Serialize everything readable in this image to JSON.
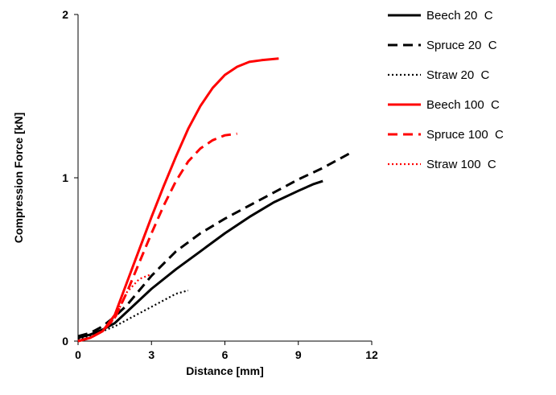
{
  "chart_data": {
    "type": "line",
    "title": "",
    "xlabel": "Distance [mm]",
    "ylabel": "Compression Force [kN]",
    "xlim": [
      0,
      12
    ],
    "ylim": [
      0,
      2
    ],
    "xticks": [
      0,
      3,
      6,
      9,
      12
    ],
    "yticks": [
      0,
      1,
      2
    ],
    "grid": false,
    "legend_position": "right",
    "series": [
      {
        "name": "Beech 20  C",
        "color": "#000000",
        "dash": "solid",
        "x": [
          0,
          0.5,
          1,
          1.5,
          2,
          3,
          4,
          5,
          6,
          7,
          8,
          9,
          9.6,
          10
        ],
        "y": [
          0.02,
          0.04,
          0.07,
          0.11,
          0.18,
          0.32,
          0.44,
          0.55,
          0.66,
          0.76,
          0.85,
          0.92,
          0.96,
          0.98
        ]
      },
      {
        "name": "Spruce 20  C",
        "color": "#000000",
        "dash": "dashed",
        "x": [
          0,
          0.5,
          1,
          1.5,
          2,
          3,
          4,
          5,
          6,
          7,
          8,
          9,
          10,
          11.1
        ],
        "y": [
          0.03,
          0.05,
          0.09,
          0.15,
          0.22,
          0.4,
          0.55,
          0.66,
          0.75,
          0.83,
          0.91,
          0.99,
          1.06,
          1.15
        ]
      },
      {
        "name": "Straw 20  C",
        "color": "#000000",
        "dash": "dotted",
        "x": [
          0,
          0.5,
          1,
          1.5,
          2,
          2.5,
          3,
          3.5,
          4,
          4.5
        ],
        "y": [
          0.01,
          0.03,
          0.06,
          0.09,
          0.13,
          0.17,
          0.21,
          0.25,
          0.29,
          0.31
        ]
      },
      {
        "name": "Beech 100  C",
        "color": "#ff0000",
        "dash": "solid",
        "x": [
          0,
          0.5,
          1,
          1.5,
          2,
          2.5,
          3,
          3.5,
          4,
          4.5,
          5,
          5.5,
          6,
          6.5,
          7,
          7.5,
          8.2
        ],
        "y": [
          0.0,
          0.02,
          0.06,
          0.16,
          0.36,
          0.56,
          0.76,
          0.95,
          1.13,
          1.3,
          1.44,
          1.55,
          1.63,
          1.68,
          1.71,
          1.72,
          1.73
        ]
      },
      {
        "name": "Spruce 100  C",
        "color": "#ff0000",
        "dash": "dashed",
        "x": [
          0,
          0.5,
          1,
          1.5,
          2,
          2.5,
          3,
          3.5,
          4,
          4.5,
          5,
          5.5,
          6,
          6.5
        ],
        "y": [
          0.0,
          0.02,
          0.06,
          0.14,
          0.3,
          0.48,
          0.66,
          0.83,
          0.98,
          1.1,
          1.18,
          1.23,
          1.26,
          1.27
        ]
      },
      {
        "name": "Straw 100  C",
        "color": "#ff0000",
        "dash": "dotted",
        "x": [
          0,
          0.5,
          1,
          1.5,
          2,
          2.5,
          3
        ],
        "y": [
          0.0,
          0.02,
          0.06,
          0.14,
          0.3,
          0.38,
          0.41
        ]
      }
    ]
  }
}
